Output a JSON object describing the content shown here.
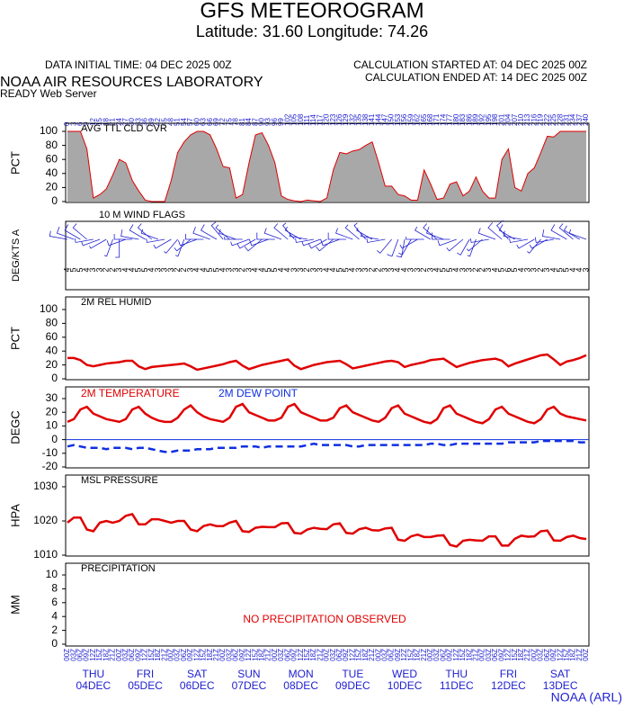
{
  "header": {
    "title": "GFS METEOROGRAM",
    "subtitle": "Latitude: 31.60 Longitude:  74.26",
    "initial_time": "DATA INITIAL TIME: 04 DEC 2025 00Z",
    "calc_started": "CALCULATION STARTED AT: 04 DEC 2025 00Z",
    "calc_ended": "CALCULATION ENDED AT: 14 DEC 2025 00Z",
    "org": "NOAA AIR RESOURCES LABORATORY",
    "server": "READY Web Server"
  },
  "footer": "NOAA (ARL)",
  "chart_data": [
    {
      "type": "area",
      "title": "AVG TTL CLD CVR",
      "ylabel": "PCT",
      "color": "#a8a8a8",
      "line_color": "#e00000",
      "x": [
        0,
        3,
        6,
        9,
        12,
        15,
        18,
        21,
        24,
        27,
        30,
        33,
        36,
        39,
        42,
        45,
        48,
        51,
        54,
        57,
        60,
        63,
        66,
        69,
        72,
        75,
        78,
        81,
        84,
        87,
        90,
        93,
        96,
        99,
        102,
        105,
        108,
        111,
        114,
        117,
        120,
        123,
        126,
        129,
        132,
        135,
        138,
        141,
        144,
        147,
        150,
        153,
        156,
        159,
        162,
        165,
        168,
        171,
        174,
        177,
        180,
        183,
        186,
        189,
        192,
        195,
        198,
        201,
        204,
        207,
        210,
        213,
        216,
        219,
        222,
        225,
        228,
        231,
        234,
        237,
        240
      ],
      "xlim": [
        0,
        240
      ],
      "values": [
        100,
        100,
        100,
        75,
        5,
        10,
        18,
        38,
        60,
        55,
        30,
        15,
        2,
        0,
        0,
        0,
        30,
        70,
        85,
        95,
        100,
        100,
        95,
        75,
        50,
        48,
        5,
        10,
        55,
        95,
        98,
        80,
        55,
        8,
        3,
        1,
        0,
        2,
        1,
        0,
        5,
        45,
        70,
        68,
        72,
        74,
        80,
        85,
        55,
        22,
        22,
        10,
        8,
        2,
        2,
        45,
        25,
        3,
        5,
        25,
        28,
        8,
        15,
        35,
        15,
        5,
        5,
        60,
        75,
        20,
        15,
        40,
        48,
        70,
        93,
        92,
        100,
        100,
        100,
        100,
        100
      ],
      "ylim": [
        0,
        100
      ],
      "yticks": [
        0,
        20,
        40,
        60,
        80,
        100
      ]
    },
    {
      "type": "barbs",
      "title": "10 M  WIND FLAGS",
      "ylabel": "DEG/KTS A",
      "color": "#2020d0",
      "direction": [
        280,
        290,
        300,
        310,
        260,
        250,
        240,
        200,
        180,
        250,
        270,
        280,
        300,
        310,
        290,
        260,
        240,
        220,
        200,
        230,
        250,
        270,
        290,
        300,
        320,
        310,
        290,
        270,
        250,
        240,
        230,
        250,
        270,
        290,
        310,
        320,
        300,
        280,
        260,
        250,
        240,
        230,
        250,
        270,
        290,
        310,
        320,
        300,
        280,
        260,
        220,
        200,
        190,
        210,
        240,
        270,
        300,
        310,
        290,
        270,
        250,
        230,
        210,
        200,
        230,
        260,
        290,
        310,
        320,
        300,
        280,
        260,
        240,
        220,
        240,
        260,
        280,
        300,
        310,
        300,
        290
      ],
      "speed": [
        4,
        5,
        5,
        4,
        3,
        3,
        2,
        2,
        3,
        4,
        4,
        5,
        5,
        4,
        3,
        3,
        3,
        2,
        2,
        3,
        4,
        4,
        5,
        5,
        4,
        3,
        3,
        2,
        3,
        4,
        4,
        5,
        5,
        4,
        4,
        3,
        3,
        2,
        3,
        3,
        4,
        4,
        5,
        5,
        4,
        3,
        3,
        2,
        2,
        3,
        3,
        4,
        4,
        3,
        3,
        2,
        3,
        4,
        5,
        5,
        4,
        3,
        3,
        2,
        2,
        3,
        4,
        5,
        6,
        5,
        4,
        3,
        3,
        2,
        3,
        4,
        5,
        5,
        4,
        4,
        3
      ]
    },
    {
      "type": "line",
      "title": "2M REL HUMID",
      "ylabel": "PCT",
      "series": [
        {
          "color": "#e00000",
          "values": [
            30,
            30,
            27,
            20,
            18,
            20,
            22,
            23,
            24,
            26,
            26,
            18,
            14,
            17,
            18,
            19,
            20,
            21,
            22,
            18,
            13,
            15,
            17,
            19,
            21,
            24,
            26,
            19,
            14,
            17,
            20,
            22,
            24,
            26,
            28,
            19,
            14,
            17,
            20,
            22,
            24,
            25,
            26,
            21,
            15,
            17,
            19,
            21,
            23,
            25,
            26,
            24,
            17,
            20,
            22,
            24,
            27,
            28,
            29,
            23,
            17,
            20,
            23,
            25,
            27,
            28,
            29,
            26,
            18,
            22,
            25,
            28,
            31,
            34,
            35,
            28,
            20,
            25,
            27,
            30,
            34
          ]
        }
      ],
      "ylim": [
        0,
        100
      ],
      "yticks": [
        0,
        20,
        40,
        60,
        80,
        100
      ]
    },
    {
      "type": "line",
      "ylabel": "DEGC",
      "zero_line": true,
      "series": [
        {
          "name": "2M TEMPERATURE",
          "color": "#e00000",
          "values": [
            13,
            15,
            22,
            24,
            19,
            17,
            15,
            14,
            13,
            15,
            22,
            24,
            19,
            16,
            14,
            13,
            13,
            16,
            22,
            25,
            20,
            17,
            15,
            14,
            13,
            16,
            24,
            26,
            20,
            18,
            16,
            14,
            14,
            16,
            24,
            26,
            20,
            18,
            16,
            14,
            14,
            16,
            23,
            25,
            20,
            18,
            16,
            14,
            13,
            16,
            23,
            25,
            19,
            17,
            15,
            13,
            12,
            15,
            23,
            25,
            19,
            17,
            15,
            13,
            12,
            15,
            22,
            24,
            19,
            17,
            15,
            13,
            12,
            15,
            22,
            24,
            19,
            17,
            16,
            15,
            14
          ]
        },
        {
          "name": "2M   DEW POINT",
          "color": "#1030e0",
          "dashed": true,
          "values": [
            -5,
            -4,
            -5,
            -6,
            -6,
            -6,
            -7,
            -6,
            -6,
            -6,
            -7,
            -6,
            -6,
            -7,
            -8,
            -9,
            -9,
            -8,
            -8,
            -8,
            -7,
            -7,
            -7,
            -6,
            -6,
            -6,
            -6,
            -5,
            -5,
            -5,
            -6,
            -5,
            -5,
            -5,
            -5,
            -5,
            -5,
            -4,
            -3,
            -4,
            -4,
            -4,
            -4,
            -4,
            -5,
            -5,
            -4,
            -4,
            -4,
            -4,
            -4,
            -4,
            -4,
            -4,
            -4,
            -4,
            -3,
            -3,
            -4,
            -4,
            -3,
            -3,
            -3,
            -3,
            -3,
            -3,
            -3,
            -3,
            -2,
            -2,
            -2,
            -2,
            -2,
            -1,
            -1,
            -1,
            -1,
            -1,
            -1,
            -2,
            -2
          ]
        }
      ],
      "ylim": [
        -20,
        30
      ],
      "yticks": [
        -20,
        -10,
        0,
        10,
        20,
        30
      ]
    },
    {
      "type": "line",
      "title": "MSL PRESSURE",
      "ylabel": "HPA",
      "series": [
        {
          "color": "#e00000",
          "values": [
            1019.5,
            1021,
            1021,
            1017.5,
            1017,
            1019.5,
            1020,
            1019.5,
            1020,
            1021.5,
            1022,
            1019,
            1019,
            1020.5,
            1020.5,
            1020,
            1019.5,
            1020,
            1020,
            1017.5,
            1017,
            1018.5,
            1019,
            1018.5,
            1018.5,
            1019.5,
            1020,
            1017,
            1016.8,
            1018,
            1018.3,
            1018.2,
            1018.2,
            1019.3,
            1019.4,
            1016.5,
            1016.3,
            1017.5,
            1018,
            1017.7,
            1017.6,
            1019,
            1019.3,
            1016.5,
            1016.3,
            1017.6,
            1018,
            1017.3,
            1017.2,
            1017.8,
            1018,
            1014.5,
            1014.2,
            1015.5,
            1016,
            1015.3,
            1015.3,
            1015.7,
            1015.8,
            1013,
            1012.5,
            1014.2,
            1014.5,
            1014.3,
            1014.2,
            1015.5,
            1015.5,
            1012.8,
            1012.8,
            1014.8,
            1015.7,
            1015.4,
            1015.5,
            1017,
            1017.2,
            1014.3,
            1014.2,
            1015.3,
            1015.7,
            1015,
            1014.7
          ]
        }
      ],
      "ylim": [
        1010,
        1030
      ],
      "yticks": [
        1010,
        1020,
        1030
      ]
    },
    {
      "type": "bar",
      "title": "PRECIPITATION",
      "ylabel": "MM",
      "annotation": "NO PRECIPITATION OBSERVED",
      "ylim": [
        0,
        10
      ],
      "yticks": [
        0,
        2,
        4,
        6,
        8,
        10
      ],
      "categories": [
        "00Z",
        "03Z",
        "06Z",
        "09Z",
        "12Z",
        "15Z",
        "18Z",
        "21Z",
        "00Z",
        "03Z",
        "06Z",
        "09Z",
        "12Z",
        "15Z",
        "18Z",
        "21Z",
        "00Z",
        "03Z",
        "06Z",
        "09Z",
        "12Z",
        "15Z",
        "18Z",
        "21Z",
        "00Z",
        "03Z",
        "06Z",
        "09Z",
        "12Z",
        "15Z",
        "18Z",
        "21Z",
        "00Z",
        "03Z",
        "06Z",
        "09Z",
        "12Z",
        "15Z",
        "18Z",
        "21Z",
        "00Z",
        "03Z",
        "06Z",
        "09Z",
        "12Z",
        "15Z",
        "18Z",
        "21Z",
        "00Z",
        "03Z",
        "06Z",
        "09Z",
        "12Z",
        "15Z",
        "18Z",
        "21Z",
        "00Z",
        "03Z",
        "06Z",
        "09Z",
        "12Z",
        "15Z",
        "18Z",
        "21Z",
        "00Z",
        "03Z",
        "06Z",
        "09Z",
        "12Z",
        "15Z",
        "18Z",
        "21Z",
        "00Z",
        "03Z",
        "06Z",
        "09Z",
        "12Z",
        "15Z",
        "18Z",
        "21Z",
        "00Z"
      ],
      "day_labels": [
        {
          "day": "THU",
          "date": "04DEC"
        },
        {
          "day": "FRI",
          "date": "05DEC"
        },
        {
          "day": "SAT",
          "date": "06DEC"
        },
        {
          "day": "SUN",
          "date": "07DEC"
        },
        {
          "day": "MON",
          "date": "08DEC"
        },
        {
          "day": "TUE",
          "date": "09DEC"
        },
        {
          "day": "WED",
          "date": "10DEC"
        },
        {
          "day": "THU",
          "date": "11DEC"
        },
        {
          "day": "FRI",
          "date": "12DEC"
        },
        {
          "day": "SAT",
          "date": "13DEC"
        }
      ]
    }
  ]
}
